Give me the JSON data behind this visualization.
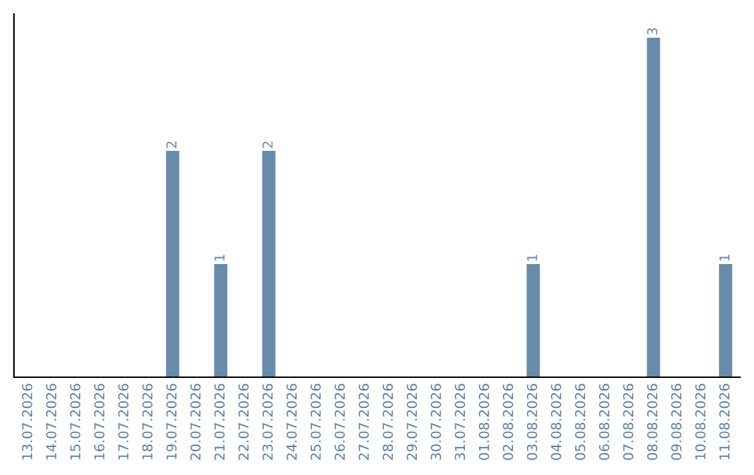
{
  "chart_data": {
    "type": "bar",
    "categories": [
      "13.07.2026",
      "14.07.2026",
      "15.07.2026",
      "16.07.2026",
      "17.07.2026",
      "18.07.2026",
      "19.07.2026",
      "20.07.2026",
      "21.07.2026",
      "22.07.2026",
      "23.07.2026",
      "24.07.2026",
      "25.07.2026",
      "26.07.2026",
      "27.07.2026",
      "28.07.2026",
      "29.07.2026",
      "30.07.2026",
      "31.07.2026",
      "01.08.2026",
      "02.08.2026",
      "03.08.2026",
      "04.08.2026",
      "05.08.2026",
      "06.08.2026",
      "07.08.2026",
      "08.08.2026",
      "09.08.2026",
      "10.08.2026",
      "11.08.2026"
    ],
    "values": [
      0,
      0,
      0,
      0,
      0,
      0,
      2,
      0,
      1,
      0,
      2,
      0,
      0,
      0,
      0,
      0,
      0,
      0,
      0,
      0,
      0,
      1,
      0,
      0,
      0,
      0,
      3,
      0,
      0,
      1
    ],
    "value_labels": [
      null,
      null,
      null,
      null,
      null,
      null,
      "2",
      null,
      "1",
      null,
      "2",
      null,
      null,
      null,
      null,
      null,
      null,
      null,
      null,
      null,
      null,
      "1",
      null,
      null,
      null,
      null,
      "3",
      null,
      null,
      "1"
    ],
    "color": "#6a8aaa",
    "tick_labels": "x",
    "grid": false,
    "legend": false
  }
}
